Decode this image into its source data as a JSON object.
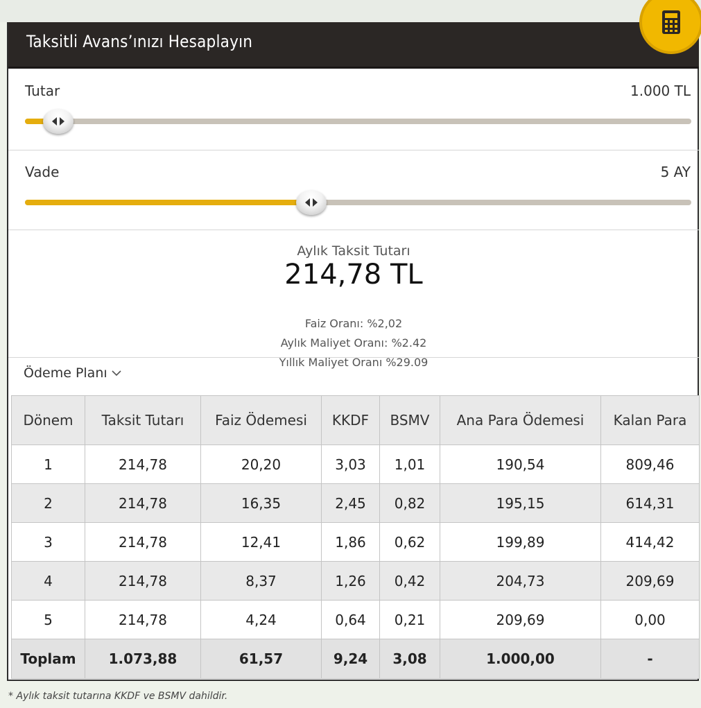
{
  "header": {
    "title": "Taksitli Avans’ınızı Hesaplayın",
    "icon": "calculator-icon"
  },
  "colors": {
    "accent": "#e5ad0e",
    "header_bg": "#2b2725",
    "badge": "#f1b800",
    "track": "#c8c2b8"
  },
  "sliders": {
    "amount": {
      "label": "Tutar",
      "value": "1.000 TL",
      "level_percent": 5
    },
    "term": {
      "label": "Vade",
      "value": "5 AY",
      "level_percent": 43
    }
  },
  "result": {
    "label": "Aylık Taksit Tutarı",
    "value": "214,78 TL",
    "interest": "Faiz Oranı: %2,02",
    "monthly_cost": "Aylık Maliyet Oranı: %2.42",
    "annual_cost": "Yıllık Maliyet Oranı %29.09"
  },
  "plan": {
    "toggle_label": "Ödeme Planı"
  },
  "table": {
    "headers": [
      "Dönem",
      "Taksit Tutarı",
      "Faiz Ödemesi",
      "KKDF",
      "BSMV",
      "Ana Para Ödemesi",
      "Kalan Para"
    ],
    "rows": [
      [
        "1",
        "214,78",
        "20,20",
        "3,03",
        "1,01",
        "190,54",
        "809,46"
      ],
      [
        "2",
        "214,78",
        "16,35",
        "2,45",
        "0,82",
        "195,15",
        "614,31"
      ],
      [
        "3",
        "214,78",
        "12,41",
        "1,86",
        "0,62",
        "199,89",
        "414,42"
      ],
      [
        "4",
        "214,78",
        "8,37",
        "1,26",
        "0,42",
        "204,73",
        "209,69"
      ],
      [
        "5",
        "214,78",
        "4,24",
        "0,64",
        "0,21",
        "209,69",
        "0,00"
      ]
    ],
    "total": [
      "Toplam",
      "1.073,88",
      "61,57",
      "9,24",
      "3,08",
      "1.000,00",
      "-"
    ]
  },
  "footnote": "* Aylık taksit tutarına KKDF ve BSMV dahildir."
}
